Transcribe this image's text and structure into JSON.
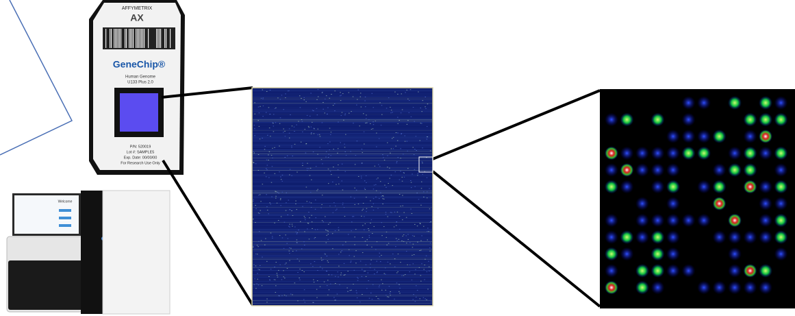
{
  "chip": {
    "brand": "AFFYMETRIX",
    "product": "GeneChip®",
    "array": [
      "Human Genome",
      "U133 Plus 2.0"
    ],
    "details": [
      "P/N: 520019",
      "Lot #: SAMPLE5",
      "Exp. Date: 00/00/00",
      "For Research Use Only"
    ]
  },
  "instrument": {
    "screen_title": "Welcome"
  }
}
